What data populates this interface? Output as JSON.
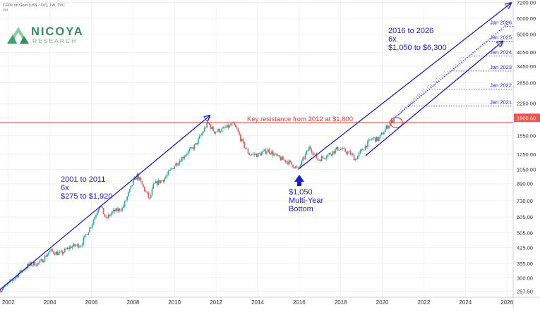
{
  "header": {
    "symbol_line": "CFDs on Gold (US$ / OZ), 1W, TVC",
    "sub_line": "Vol"
  },
  "logo": {
    "name": "NICOYA",
    "sub": "RESEARCH"
  },
  "colors": {
    "up": "#26a69a",
    "down": "#ef5350",
    "blue": "#1a1adb",
    "red": "#e53935",
    "price_tag": "#ef5350"
  },
  "annotations": {
    "left": [
      "2001 to 2011",
      "6x",
      "$275 to $1,920"
    ],
    "right": [
      "2016 to 2026",
      "6x",
      "$1,050 to $6,300"
    ],
    "bottom": [
      "$1,050",
      "Multi-Year",
      "Bottom"
    ],
    "resistance": "Key resistance from 2012 at $1,800",
    "jan_labels": [
      "Jan 2026",
      "Jan 2025",
      "Jan 2024",
      "Jan 2023",
      "Jan 2022",
      "Jan 2021"
    ]
  },
  "chart_data": {
    "type": "line",
    "scale": "log",
    "xlim": [
      2001.6,
      2026.3
    ],
    "ylim": [
      240,
      7400
    ],
    "x_ticks": [
      "2002",
      "2004",
      "2006",
      "2008",
      "2010",
      "2012",
      "2014",
      "2016",
      "2018",
      "2020",
      "2022",
      "2024",
      "2026"
    ],
    "y_ticks": [
      "7200.00",
      "6000.00",
      "5000.00",
      "4050.00",
      "3450.00",
      "2850.00",
      "2250.00",
      "1900.60",
      "1550.00",
      "1250.00",
      "1050.00",
      "890.00",
      "730.00",
      "605.00",
      "505.00",
      "425.00",
      "355.00",
      "300.00",
      "257.50"
    ],
    "current_price": 1900.6,
    "resistance_level": 1800,
    "price": [
      [
        2001.6,
        262
      ],
      [
        2002.0,
        280
      ],
      [
        2002.5,
        315
      ],
      [
        2003.0,
        350
      ],
      [
        2003.5,
        355
      ],
      [
        2004.0,
        410
      ],
      [
        2004.5,
        395
      ],
      [
        2005.0,
        430
      ],
      [
        2005.5,
        440
      ],
      [
        2006.0,
        555
      ],
      [
        2006.4,
        700
      ],
      [
        2006.7,
        590
      ],
      [
        2007.0,
        640
      ],
      [
        2007.5,
        670
      ],
      [
        2008.0,
        900
      ],
      [
        2008.2,
        980
      ],
      [
        2008.8,
        740
      ],
      [
        2009.0,
        880
      ],
      [
        2009.5,
        940
      ],
      [
        2010.0,
        1100
      ],
      [
        2010.5,
        1240
      ],
      [
        2011.0,
        1380
      ],
      [
        2011.6,
        1800
      ],
      [
        2011.9,
        1620
      ],
      [
        2012.3,
        1660
      ],
      [
        2012.8,
        1760
      ],
      [
        2013.0,
        1660
      ],
      [
        2013.3,
        1400
      ],
      [
        2013.6,
        1250
      ],
      [
        2014.0,
        1240
      ],
      [
        2014.5,
        1310
      ],
      [
        2015.0,
        1200
      ],
      [
        2015.5,
        1140
      ],
      [
        2015.95,
        1050
      ],
      [
        2016.5,
        1360
      ],
      [
        2016.9,
        1170
      ],
      [
        2017.5,
        1260
      ],
      [
        2017.9,
        1340
      ],
      [
        2018.5,
        1250
      ],
      [
        2018.7,
        1180
      ],
      [
        2019.0,
        1300
      ],
      [
        2019.5,
        1500
      ],
      [
        2019.8,
        1480
      ],
      [
        2020.2,
        1700
      ],
      [
        2020.6,
        1900.6
      ]
    ],
    "lines": [
      {
        "kind": "support",
        "from": [
          2001.6,
          262
        ],
        "to": [
          2011.7,
          1950
        ]
      },
      {
        "kind": "support",
        "from": [
          2015.95,
          1050
        ],
        "to": [
          2026.2,
          7150
        ]
      },
      {
        "kind": "channel",
        "from": [
          2019.2,
          1230
        ],
        "to": [
          2025.8,
          4600
        ]
      },
      {
        "kind": "projection",
        "from": [
          2020.6,
          1900
        ],
        "to": [
          2026.1,
          5700
        ]
      }
    ],
    "targets": [
      {
        "label": "Jan 2026",
        "x": 2026.0,
        "y": 5460
      },
      {
        "label": "Jan 2025",
        "x": 2025.0,
        "y": 4600
      },
      {
        "label": "Jan 2024",
        "x": 2024.0,
        "y": 3880
      },
      {
        "label": "Jan 2023",
        "x": 2023.0,
        "y": 3260
      },
      {
        "label": "Jan 2022",
        "x": 2022.0,
        "y": 2650
      },
      {
        "label": "Jan 2021",
        "x": 2021.0,
        "y": 2180
      }
    ]
  }
}
